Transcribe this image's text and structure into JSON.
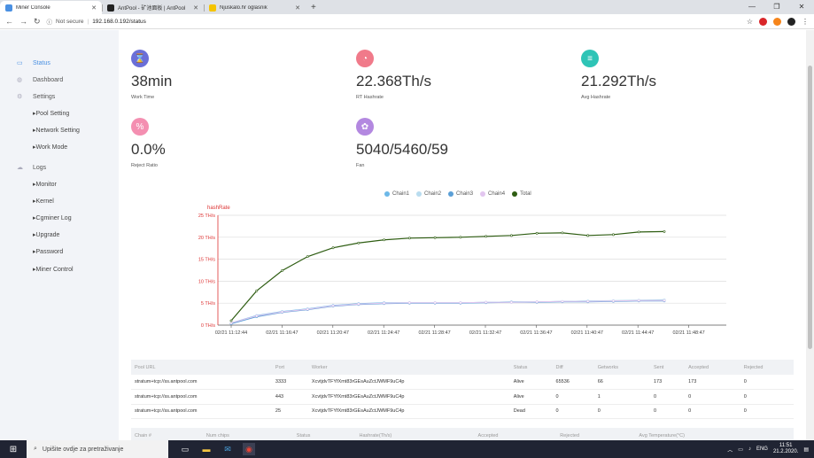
{
  "browser": {
    "tabs": [
      {
        "title": "Miner Console",
        "active": true,
        "color": "#4a90e2"
      },
      {
        "title": "AntPool - 矿池面板 | AntPool",
        "active": false,
        "color": "#222"
      },
      {
        "title": "Njuskalo.hr oglasnik",
        "active": false,
        "color": "#f5c400"
      }
    ],
    "new_tab": "+",
    "security": "Not secure",
    "url": "192.168.0.192/status"
  },
  "sidebar": {
    "items": [
      {
        "label": "Status",
        "active": true
      },
      {
        "label": "Dashboard",
        "active": false
      },
      {
        "label": "Settings",
        "active": false
      }
    ],
    "settings_sub": [
      "Pool Setting",
      "Network Setting",
      "Work Mode"
    ],
    "logs_label": "Logs",
    "logs_sub": [
      "Monitor",
      "Kernel",
      "Cgminer Log",
      "Upgrade",
      "Password",
      "Miner Control"
    ]
  },
  "stats": [
    {
      "value": "38min",
      "label": "Work Time",
      "icon": "hourglass-icon",
      "color": "#6a6fd8",
      "glyph": "⌛"
    },
    {
      "value": "22.368Th/s",
      "label": "RT Hashrate",
      "icon": "speedometer-icon",
      "color": "#f07a8a",
      "glyph": "◔"
    },
    {
      "value": "21.292Th/s",
      "label": "Avg Hashrate",
      "icon": "server-icon",
      "color": "#2ec4b6",
      "glyph": "≡"
    },
    {
      "value": "0.0%",
      "label": "Reject Ratio",
      "icon": "percent-icon",
      "color": "#f48fb1",
      "glyph": "%"
    },
    {
      "value": "5040/5460/59",
      "label": "Fan",
      "icon": "fan-icon",
      "color": "#b388e0",
      "glyph": "✿"
    }
  ],
  "chart_data": {
    "type": "line",
    "ylabel": "hashRate",
    "ylim": [
      0,
      25
    ],
    "y_ticks": [
      "0 TH/s",
      "5 TH/s",
      "10 TH/s",
      "15 TH/s",
      "20 TH/s",
      "25 TH/s"
    ],
    "x_ticks": [
      "02/21 11:12:44",
      "02/21 11:16:47",
      "02/21 11:20:47",
      "02/21 11:24:47",
      "02/21 11:28:47",
      "02/21 11:32:47",
      "02/21 11:36:47",
      "02/21 11:40:47",
      "02/21 11:44:47",
      "02/21 11:48:47"
    ],
    "legend": "top-center",
    "series": [
      {
        "name": "Chain1",
        "color": "#6cb8e8",
        "values": [
          0.5,
          2.2,
          3.1,
          3.7,
          4.5,
          4.9,
          5.1,
          5.1,
          5.1,
          5.1,
          5.2,
          5.3,
          5.3,
          5.4,
          5.5,
          5.5,
          5.6,
          5.7
        ]
      },
      {
        "name": "Chain2",
        "color": "#b9dcef",
        "values": [
          0.4,
          2.0,
          3.0,
          3.6,
          4.4,
          4.8,
          5.0,
          5.1,
          5.1,
          5.1,
          5.2,
          5.3,
          5.3,
          5.4,
          5.5,
          5.6,
          5.7,
          5.8
        ]
      },
      {
        "name": "Chain3",
        "color": "#5b9fd6",
        "values": [
          0.3,
          1.9,
          2.9,
          3.5,
          4.3,
          4.7,
          4.9,
          5.0,
          5.0,
          5.0,
          5.1,
          5.2,
          5.2,
          5.3,
          5.3,
          5.4,
          5.5,
          5.5
        ]
      },
      {
        "name": "Chain4",
        "color": "#e2c6ef",
        "values": [
          0.5,
          2.1,
          3.0,
          3.6,
          4.4,
          4.8,
          5.0,
          5.1,
          5.1,
          5.1,
          5.2,
          5.2,
          5.3,
          5.4,
          5.4,
          5.5,
          5.6,
          5.6
        ]
      },
      {
        "name": "Total",
        "color": "#2e5d12",
        "values": [
          1.0,
          7.8,
          12.4,
          15.6,
          17.6,
          18.7,
          19.4,
          19.8,
          19.9,
          20.0,
          20.2,
          20.4,
          20.9,
          21.0,
          20.4,
          20.6,
          21.2,
          21.3
        ]
      }
    ]
  },
  "pools": {
    "headers": [
      "Pool URL",
      "Port",
      "Worker",
      "Status",
      "Diff",
      "Getworks",
      "Sent",
      "Accepted",
      "Rejected"
    ],
    "rows": [
      [
        "stratum+tcp://ss.antpool.com",
        "3333",
        "XcvtjdvTFYfXmt83rGEsAuZctJWMF9uC4p",
        "Alive",
        "65536",
        "66",
        "173",
        "173",
        "0"
      ],
      [
        "stratum+tcp://ss.antpool.com",
        "443",
        "XcvtjdvTFYfXmt83rGEsAuZctJWMF9uC4p",
        "Alive",
        "0",
        "1",
        "0",
        "0",
        "0"
      ],
      [
        "stratum+tcp://ss.antpool.com",
        "25",
        "XcvtjdvTFYfXmt83rGEsAuZctJWMF9uC4p",
        "Dead",
        "0",
        "0",
        "0",
        "0",
        "0"
      ]
    ]
  },
  "chains": {
    "headers": [
      "Chain #",
      "Num chips",
      "Status",
      "Hashrate(Th/s)",
      "Accepted",
      "Rejected",
      "Avg Temperature(°C)"
    ]
  },
  "taskbar": {
    "search_placeholder": "Upišite ovdje za pretraživanje",
    "lang": "ENG",
    "time": "11:51",
    "date": "21.2.2020."
  }
}
